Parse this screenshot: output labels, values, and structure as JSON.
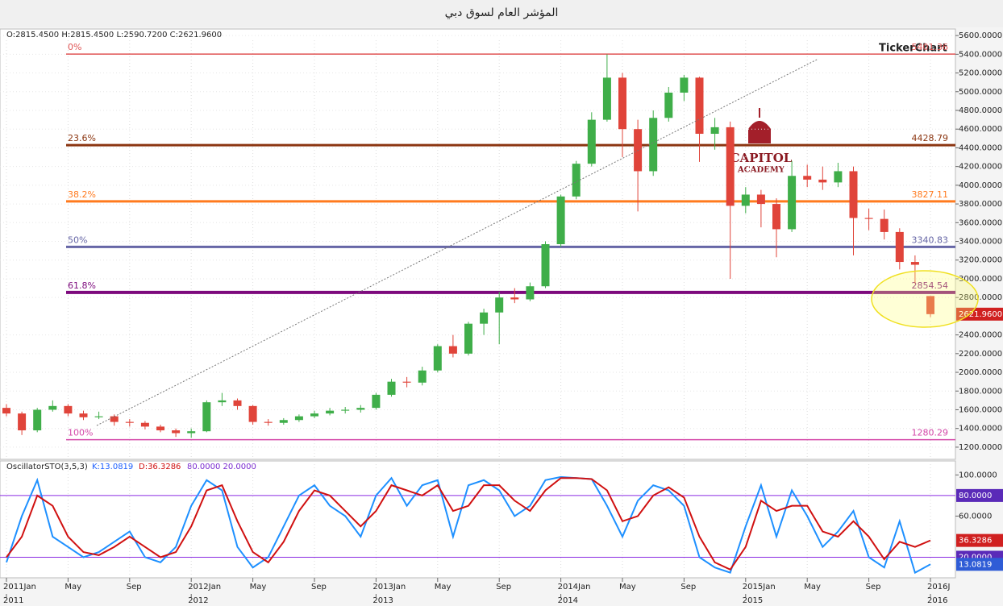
{
  "chart_data": [
    {
      "type": "candlestick",
      "title": "المؤشر العام لسوق دبي",
      "ohlc_header": "O:2815.4500 H:2815.4500 L:2590.7200 C:2621.9600",
      "watermark": "TickerChart",
      "logo_title": "CAPITOL",
      "logo_subtitle": "ACADEMY",
      "x": [
        "2011-01",
        "2011-02",
        "2011-03",
        "2011-04",
        "2011-05",
        "2011-06",
        "2011-07",
        "2011-08",
        "2011-09",
        "2011-10",
        "2011-11",
        "2011-12",
        "2012-01",
        "2012-02",
        "2012-03",
        "2012-04",
        "2012-05",
        "2012-06",
        "2012-07",
        "2012-08",
        "2012-09",
        "2012-10",
        "2012-11",
        "2012-12",
        "2013-01",
        "2013-02",
        "2013-03",
        "2013-04",
        "2013-05",
        "2013-06",
        "2013-07",
        "2013-08",
        "2013-09",
        "2013-10",
        "2013-11",
        "2013-12",
        "2014-01",
        "2014-02",
        "2014-03",
        "2014-04",
        "2014-05",
        "2014-06",
        "2014-07",
        "2014-08",
        "2014-09",
        "2014-10",
        "2014-11",
        "2014-12",
        "2015-01",
        "2015-02",
        "2015-03",
        "2015-04",
        "2015-05",
        "2015-06",
        "2015-07",
        "2015-08",
        "2015-09",
        "2015-10",
        "2015-11",
        "2015-12",
        "2016-01"
      ],
      "open": [
        1620,
        1560,
        1380,
        1600,
        1640,
        1560,
        1520,
        1530,
        1470,
        1460,
        1420,
        1380,
        1350,
        1370,
        1680,
        1700,
        1640,
        1470,
        1460,
        1490,
        1530,
        1560,
        1590,
        1600,
        1620,
        1760,
        1900,
        1890,
        2020,
        2280,
        2200,
        2520,
        2640,
        2800,
        2780,
        2920,
        3370,
        3880,
        4230,
        4700,
        5150,
        4600,
        4150,
        4720,
        4990,
        5150,
        4550,
        4620,
        3780,
        3900,
        3800,
        3530,
        4100,
        4060,
        4030,
        4150,
        3650,
        3640,
        3500,
        3180,
        2815.45
      ],
      "high": [
        1660,
        1580,
        1620,
        1700,
        1660,
        1590,
        1580,
        1550,
        1500,
        1480,
        1440,
        1400,
        1400,
        1700,
        1780,
        1720,
        1650,
        1500,
        1510,
        1550,
        1590,
        1620,
        1630,
        1650,
        1780,
        1930,
        1950,
        2060,
        2300,
        2400,
        2540,
        2680,
        2860,
        2900,
        2960,
        3400,
        3900,
        4260,
        4780,
        5400,
        5200,
        4700,
        4800,
        5050,
        5180,
        5160,
        4720,
        4680,
        3980,
        3950,
        3860,
        4260,
        4220,
        4200,
        4240,
        4200,
        3750,
        3740,
        3540,
        3250,
        2815.45
      ],
      "low": [
        1530,
        1330,
        1360,
        1580,
        1530,
        1490,
        1500,
        1430,
        1420,
        1390,
        1360,
        1310,
        1300,
        1360,
        1640,
        1600,
        1440,
        1430,
        1440,
        1470,
        1510,
        1540,
        1560,
        1570,
        1600,
        1740,
        1840,
        1860,
        2000,
        2160,
        2180,
        2400,
        2300,
        2740,
        2760,
        2900,
        3340,
        3850,
        4200,
        4680,
        4300,
        3720,
        4100,
        4680,
        4900,
        4250,
        4380,
        3000,
        3700,
        3550,
        3230,
        3500,
        3980,
        3950,
        3980,
        3250,
        3520,
        3420,
        3100,
        2950,
        2590.72
      ],
      "close": [
        1560,
        1380,
        1600,
        1640,
        1560,
        1520,
        1530,
        1470,
        1460,
        1420,
        1380,
        1350,
        1370,
        1680,
        1700,
        1640,
        1470,
        1460,
        1490,
        1530,
        1560,
        1590,
        1600,
        1620,
        1760,
        1900,
        1890,
        2020,
        2280,
        2200,
        2520,
        2640,
        2800,
        2780,
        2920,
        3370,
        3880,
        4230,
        4700,
        5150,
        4600,
        4150,
        4720,
        4990,
        5150,
        4550,
        4620,
        3780,
        3900,
        3800,
        3530,
        4100,
        4060,
        4030,
        4150,
        3650,
        3640,
        3500,
        3180,
        3150,
        2621.96
      ],
      "up_color": "#3fae49",
      "down_color": "#e0443a",
      "ylim": [
        1070,
        5670
      ],
      "yticks": [
        {
          "value": 1200,
          "label": "1200.0000"
        },
        {
          "value": 1400,
          "label": "1400.0000"
        },
        {
          "value": 1600,
          "label": "1600.0000"
        },
        {
          "value": 1800,
          "label": "1800.0000"
        },
        {
          "value": 2000,
          "label": "2000.0000"
        },
        {
          "value": 2200,
          "label": "2200.0000"
        },
        {
          "value": 2400,
          "label": "2400.0000"
        },
        {
          "value": 2800,
          "label": "2800.0000"
        },
        {
          "value": 3000,
          "label": "3000.0000"
        },
        {
          "value": 3200,
          "label": "3200.0000"
        },
        {
          "value": 3400,
          "label": "3400.0000"
        },
        {
          "value": 3600,
          "label": "3600.0000"
        },
        {
          "value": 3800,
          "label": "3800.0000"
        },
        {
          "value": 4000,
          "label": "4000.0000"
        },
        {
          "value": 4200,
          "label": "4200.0000"
        },
        {
          "value": 4400,
          "label": "4400.0000"
        },
        {
          "value": 4600,
          "label": "4600.0000"
        },
        {
          "value": 4800,
          "label": "4800.0000"
        },
        {
          "value": 5000,
          "label": "5000.0000"
        },
        {
          "value": 5200,
          "label": "5200.0000"
        },
        {
          "value": 5400,
          "label": "5400.0000"
        },
        {
          "value": 5600,
          "label": "5600.0000"
        }
      ],
      "price_tag": {
        "value": 2621.96,
        "label": "2621.9600"
      },
      "fib_levels": [
        {
          "name": "0%",
          "value": 5401.36,
          "color": "#e05555",
          "width": 1.5
        },
        {
          "name": "23.6%",
          "value": 4428.79,
          "color": "#8b3510",
          "width": 3
        },
        {
          "name": "38.2%",
          "value": 3827.11,
          "color": "#ff7a1e",
          "width": 3
        },
        {
          "name": "50%",
          "value": 3340.83,
          "color": "#6666a6",
          "width": 3
        },
        {
          "name": "61.8%",
          "value": 2854.54,
          "color": "#7d0a7d",
          "width": 4
        },
        {
          "name": "100%",
          "value": 1280.29,
          "color": "#d447a8",
          "width": 1.5
        }
      ],
      "grid": true
    },
    {
      "type": "line",
      "indicator": "OscillatorSTO(3,5,3)",
      "k_header": "K:13.0819",
      "d_header": "D:36.3286",
      "levels_header": "80.0000 20.0000",
      "series": [
        {
          "color": "#1e90ff",
          "values": [
            15,
            60,
            95,
            40,
            30,
            20,
            25,
            35,
            45,
            20,
            15,
            30,
            70,
            95,
            85,
            30,
            10,
            20,
            50,
            80,
            90,
            70,
            60,
            40,
            80,
            97,
            70,
            90,
            95,
            40,
            90,
            95,
            85,
            60,
            70,
            95,
            98,
            97,
            96,
            70,
            40,
            75,
            90,
            85,
            70,
            20,
            10,
            5,
            50,
            90,
            40,
            85,
            60,
            30,
            45,
            65,
            20,
            10,
            55,
            5,
            13.0819
          ],
          "tag_bg": "#2f5cd6"
        },
        {
          "color": "#d01010",
          "values": [
            20,
            40,
            80,
            70,
            40,
            25,
            22,
            30,
            40,
            30,
            20,
            25,
            50,
            85,
            90,
            55,
            25,
            15,
            35,
            65,
            85,
            80,
            65,
            50,
            65,
            90,
            85,
            80,
            90,
            65,
            70,
            90,
            90,
            75,
            65,
            85,
            97,
            97,
            96,
            85,
            55,
            60,
            80,
            88,
            78,
            40,
            15,
            8,
            30,
            75,
            65,
            70,
            70,
            45,
            40,
            55,
            40,
            18,
            35,
            30,
            36.3286
          ],
          "tag_bg": "#d02020"
        }
      ],
      "levels": [
        {
          "value": 80,
          "label": "80.0000"
        },
        {
          "value": 20,
          "label": "20.0000"
        }
      ],
      "level_color": "#8a2be2",
      "ylim": [
        0,
        113.6
      ],
      "yticks": [
        {
          "value": 100,
          "label": "100.0000"
        },
        {
          "value": 60,
          "label": "60.0000"
        }
      ],
      "xticks": [
        {
          "value": "2011-01",
          "label": "2011Jan"
        },
        {
          "value": "2011-05",
          "label": "May"
        },
        {
          "value": "2011-09",
          "label": "Sep"
        },
        {
          "value": "2012-01",
          "label": "2012Jan"
        },
        {
          "value": "2012-05",
          "label": "May"
        },
        {
          "value": "2012-09",
          "label": "Sep"
        },
        {
          "value": "2013-01",
          "label": "2013Jan"
        },
        {
          "value": "2013-05",
          "label": "May"
        },
        {
          "value": "2013-09",
          "label": "Sep"
        },
        {
          "value": "2014-01",
          "label": "2014Jan"
        },
        {
          "value": "2014-05",
          "label": "May"
        },
        {
          "value": "2014-09",
          "label": "Sep"
        },
        {
          "value": "2015-01",
          "label": "2015Jan"
        },
        {
          "value": "2015-05",
          "label": "May"
        },
        {
          "value": "2015-09",
          "label": "Sep"
        },
        {
          "value": "2016-01",
          "label": "2016J"
        }
      ],
      "year_ticks": [
        {
          "value": "2011-01",
          "label": "2011"
        },
        {
          "value": "2012-01",
          "label": "2012"
        },
        {
          "value": "2013-01",
          "label": "2013"
        },
        {
          "value": "2014-01",
          "label": "2014"
        },
        {
          "value": "2015-01",
          "label": "2015"
        },
        {
          "value": "2016-01",
          "label": "2016"
        }
      ]
    }
  ]
}
